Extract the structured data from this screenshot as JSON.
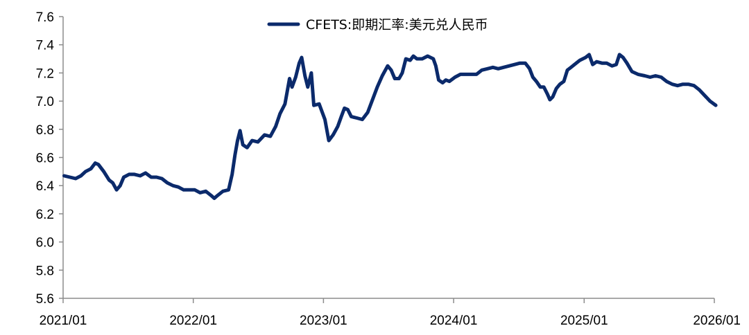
{
  "chart_data": {
    "type": "line",
    "title": "",
    "xlabel": "",
    "ylabel": "",
    "x_ticks": [
      "2021/01",
      "2022/01",
      "2023/01",
      "2024/01",
      "2025/01",
      "2026/01"
    ],
    "y_ticks": [
      "5.6",
      "5.8",
      "6.0",
      "6.2",
      "6.4",
      "6.6",
      "6.8",
      "7.0",
      "7.2",
      "7.4",
      "7.6"
    ],
    "ylim": [
      5.6,
      7.6
    ],
    "xlim": [
      "2021-01",
      "2026-01"
    ],
    "grid": false,
    "legend_position": "top-center",
    "series_color": "#0b2a6b",
    "series": [
      {
        "name": "CFETS:即期汇率:美元兑人民币",
        "points": [
          [
            "2021-01-04",
            6.47
          ],
          [
            "2021-01-20",
            6.46
          ],
          [
            "2021-02-05",
            6.45
          ],
          [
            "2021-02-20",
            6.47
          ],
          [
            "2021-03-05",
            6.5
          ],
          [
            "2021-03-20",
            6.52
          ],
          [
            "2021-04-01",
            6.56
          ],
          [
            "2021-04-10",
            6.55
          ],
          [
            "2021-04-25",
            6.5
          ],
          [
            "2021-05-10",
            6.44
          ],
          [
            "2021-05-20",
            6.42
          ],
          [
            "2021-05-31",
            6.37
          ],
          [
            "2021-06-10",
            6.4
          ],
          [
            "2021-06-20",
            6.46
          ],
          [
            "2021-07-05",
            6.48
          ],
          [
            "2021-07-20",
            6.48
          ],
          [
            "2021-08-05",
            6.47
          ],
          [
            "2021-08-20",
            6.49
          ],
          [
            "2021-09-05",
            6.46
          ],
          [
            "2021-09-20",
            6.46
          ],
          [
            "2021-10-05",
            6.45
          ],
          [
            "2021-10-20",
            6.42
          ],
          [
            "2021-11-05",
            6.4
          ],
          [
            "2021-11-20",
            6.39
          ],
          [
            "2021-12-05",
            6.37
          ],
          [
            "2021-12-20",
            6.37
          ],
          [
            "2022-01-05",
            6.37
          ],
          [
            "2022-01-20",
            6.35
          ],
          [
            "2022-02-05",
            6.36
          ],
          [
            "2022-02-20",
            6.33
          ],
          [
            "2022-03-01",
            6.31
          ],
          [
            "2022-03-10",
            6.33
          ],
          [
            "2022-03-25",
            6.36
          ],
          [
            "2022-04-10",
            6.37
          ],
          [
            "2022-04-20",
            6.48
          ],
          [
            "2022-04-28",
            6.62
          ],
          [
            "2022-05-05",
            6.72
          ],
          [
            "2022-05-12",
            6.79
          ],
          [
            "2022-05-20",
            6.69
          ],
          [
            "2022-06-01",
            6.67
          ],
          [
            "2022-06-15",
            6.72
          ],
          [
            "2022-07-01",
            6.71
          ],
          [
            "2022-07-20",
            6.76
          ],
          [
            "2022-08-05",
            6.75
          ],
          [
            "2022-08-20",
            6.82
          ],
          [
            "2022-09-01",
            6.91
          ],
          [
            "2022-09-15",
            6.98
          ],
          [
            "2022-09-28",
            7.16
          ],
          [
            "2022-10-05",
            7.1
          ],
          [
            "2022-10-15",
            7.17
          ],
          [
            "2022-10-25",
            7.27
          ],
          [
            "2022-11-01",
            7.31
          ],
          [
            "2022-11-10",
            7.18
          ],
          [
            "2022-11-18",
            7.1
          ],
          [
            "2022-11-28",
            7.2
          ],
          [
            "2022-12-05",
            6.97
          ],
          [
            "2022-12-20",
            6.98
          ],
          [
            "2023-01-05",
            6.87
          ],
          [
            "2023-01-16",
            6.72
          ],
          [
            "2023-01-28",
            6.76
          ],
          [
            "2023-02-10",
            6.82
          ],
          [
            "2023-02-20",
            6.89
          ],
          [
            "2023-03-01",
            6.95
          ],
          [
            "2023-03-10",
            6.94
          ],
          [
            "2023-03-20",
            6.89
          ],
          [
            "2023-04-05",
            6.88
          ],
          [
            "2023-04-20",
            6.87
          ],
          [
            "2023-05-05",
            6.92
          ],
          [
            "2023-05-20",
            7.02
          ],
          [
            "2023-06-01",
            7.1
          ],
          [
            "2023-06-15",
            7.18
          ],
          [
            "2023-06-30",
            7.25
          ],
          [
            "2023-07-10",
            7.22
          ],
          [
            "2023-07-20",
            7.16
          ],
          [
            "2023-08-01",
            7.16
          ],
          [
            "2023-08-10",
            7.2
          ],
          [
            "2023-08-20",
            7.3
          ],
          [
            "2023-09-01",
            7.29
          ],
          [
            "2023-09-10",
            7.32
          ],
          [
            "2023-09-20",
            7.3
          ],
          [
            "2023-10-05",
            7.3
          ],
          [
            "2023-10-20",
            7.32
          ],
          [
            "2023-11-05",
            7.3
          ],
          [
            "2023-11-12",
            7.25
          ],
          [
            "2023-11-20",
            7.15
          ],
          [
            "2023-12-01",
            7.13
          ],
          [
            "2023-12-10",
            7.15
          ],
          [
            "2023-12-20",
            7.14
          ],
          [
            "2024-01-05",
            7.17
          ],
          [
            "2024-01-20",
            7.19
          ],
          [
            "2024-02-05",
            7.19
          ],
          [
            "2024-02-20",
            7.19
          ],
          [
            "2024-03-05",
            7.19
          ],
          [
            "2024-03-20",
            7.22
          ],
          [
            "2024-04-05",
            7.23
          ],
          [
            "2024-04-20",
            7.24
          ],
          [
            "2024-05-05",
            7.23
          ],
          [
            "2024-05-20",
            7.24
          ],
          [
            "2024-06-05",
            7.25
          ],
          [
            "2024-06-20",
            7.26
          ],
          [
            "2024-07-05",
            7.27
          ],
          [
            "2024-07-20",
            7.27
          ],
          [
            "2024-08-01",
            7.23
          ],
          [
            "2024-08-10",
            7.17
          ],
          [
            "2024-08-20",
            7.14
          ],
          [
            "2024-08-31",
            7.1
          ],
          [
            "2024-09-10",
            7.1
          ],
          [
            "2024-09-20",
            7.05
          ],
          [
            "2024-09-27",
            7.01
          ],
          [
            "2024-10-05",
            7.03
          ],
          [
            "2024-10-15",
            7.09
          ],
          [
            "2024-10-25",
            7.12
          ],
          [
            "2024-11-05",
            7.14
          ],
          [
            "2024-11-15",
            7.22
          ],
          [
            "2024-11-25",
            7.24
          ],
          [
            "2024-12-05",
            7.26
          ],
          [
            "2024-12-20",
            7.29
          ],
          [
            "2025-01-05",
            7.31
          ],
          [
            "2025-01-15",
            7.33
          ],
          [
            "2025-01-25",
            7.26
          ],
          [
            "2025-02-05",
            7.28
          ],
          [
            "2025-02-20",
            7.27
          ],
          [
            "2025-03-05",
            7.27
          ],
          [
            "2025-03-20",
            7.25
          ],
          [
            "2025-04-01",
            7.26
          ],
          [
            "2025-04-10",
            7.33
          ],
          [
            "2025-04-20",
            7.31
          ],
          [
            "2025-05-01",
            7.27
          ],
          [
            "2025-05-15",
            7.21
          ],
          [
            "2025-06-01",
            7.19
          ],
          [
            "2025-06-20",
            7.18
          ],
          [
            "2025-07-05",
            7.17
          ],
          [
            "2025-07-20",
            7.18
          ],
          [
            "2025-08-05",
            7.17
          ],
          [
            "2025-08-20",
            7.14
          ],
          [
            "2025-09-05",
            7.12
          ],
          [
            "2025-09-20",
            7.11
          ],
          [
            "2025-10-05",
            7.12
          ],
          [
            "2025-10-20",
            7.12
          ],
          [
            "2025-11-05",
            7.11
          ],
          [
            "2025-11-20",
            7.08
          ],
          [
            "2025-12-05",
            7.04
          ],
          [
            "2025-12-20",
            7.0
          ],
          [
            "2026-01-05",
            6.97
          ]
        ]
      }
    ]
  }
}
